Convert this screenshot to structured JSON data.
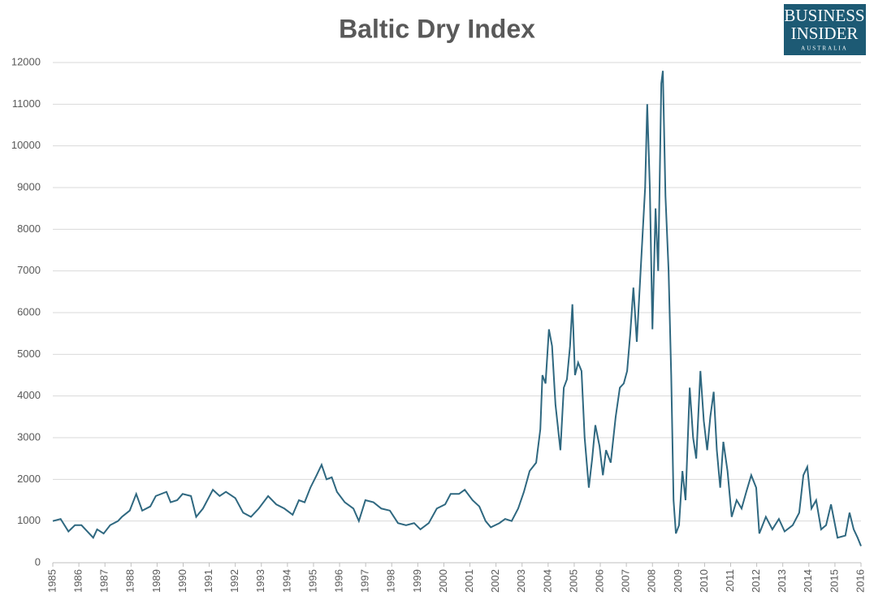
{
  "chart_data": {
    "type": "line",
    "title": "Baltic Dry Index",
    "x": [
      1985.0,
      1985.3,
      1985.6,
      1985.85,
      1986.1,
      1986.4,
      1986.55,
      1986.7,
      1986.95,
      1987.2,
      1987.5,
      1987.65,
      1987.95,
      1988.2,
      1988.43,
      1988.74,
      1988.95,
      1989.36,
      1989.52,
      1989.77,
      1989.98,
      1990.3,
      1990.5,
      1990.76,
      1991.14,
      1991.4,
      1991.64,
      1992.0,
      1992.3,
      1992.6,
      1992.9,
      1993.26,
      1993.57,
      1993.88,
      1994.2,
      1994.44,
      1994.66,
      1994.88,
      1995.12,
      1995.31,
      1995.5,
      1995.7,
      1995.9,
      1996.2,
      1996.53,
      1996.74,
      1996.99,
      1997.3,
      1997.6,
      1997.93,
      1998.24,
      1998.55,
      1998.86,
      1999.1,
      1999.42,
      1999.73,
      2000.05,
      2000.26,
      2000.58,
      2000.8,
      2001.1,
      2001.36,
      2001.6,
      2001.8,
      2002.13,
      2002.35,
      2002.6,
      2002.85,
      2003.07,
      2003.29,
      2003.54,
      2003.7,
      2003.78,
      2003.9,
      2004.03,
      2004.15,
      2004.28,
      2004.47,
      2004.6,
      2004.72,
      2004.84,
      2004.93,
      2005.03,
      2005.15,
      2005.28,
      2005.4,
      2005.56,
      2005.69,
      2005.81,
      2005.97,
      2006.1,
      2006.22,
      2006.4,
      2006.59,
      2006.75,
      2006.9,
      2007.03,
      2007.15,
      2007.27,
      2007.4,
      2007.59,
      2007.72,
      2007.8,
      2007.9,
      2008.0,
      2008.12,
      2008.22,
      2008.34,
      2008.4,
      2008.5,
      2008.62,
      2008.72,
      2008.81,
      2008.9,
      2009.02,
      2009.15,
      2009.27,
      2009.43,
      2009.56,
      2009.68,
      2009.84,
      2009.97,
      2010.1,
      2010.22,
      2010.35,
      2010.47,
      2010.6,
      2010.72,
      2010.88,
      2011.04,
      2011.23,
      2011.42,
      2011.6,
      2011.79,
      2011.98,
      2012.1,
      2012.35,
      2012.6,
      2012.85,
      2013.07,
      2013.38,
      2013.63,
      2013.79,
      2013.94,
      2014.1,
      2014.28,
      2014.47,
      2014.66,
      2014.85,
      2015.1,
      2015.4,
      2015.56,
      2015.72,
      2015.87,
      2016.0
    ],
    "series": [
      {
        "name": "Baltic Dry Index",
        "color": "#2f6880",
        "values": [
          1000,
          1050,
          750,
          900,
          900,
          700,
          600,
          800,
          700,
          900,
          1000,
          1100,
          1250,
          1650,
          1250,
          1350,
          1600,
          1700,
          1450,
          1500,
          1650,
          1600,
          1100,
          1300,
          1750,
          1600,
          1700,
          1550,
          1200,
          1100,
          1300,
          1600,
          1400,
          1300,
          1150,
          1500,
          1450,
          1800,
          2100,
          2350,
          2000,
          2050,
          1700,
          1450,
          1300,
          1000,
          1500,
          1450,
          1300,
          1250,
          950,
          900,
          950,
          800,
          950,
          1300,
          1400,
          1650,
          1650,
          1750,
          1500,
          1350,
          1000,
          850,
          950,
          1050,
          1000,
          1300,
          1700,
          2200,
          2400,
          3200,
          4500,
          4300,
          5600,
          5200,
          3800,
          2700,
          4200,
          4400,
          5200,
          6200,
          4500,
          4800,
          4600,
          3000,
          1800,
          2500,
          3300,
          2800,
          2100,
          2700,
          2400,
          3500,
          4200,
          4300,
          4600,
          5500,
          6600,
          5300,
          7500,
          9000,
          11000,
          9000,
          5600,
          8500,
          7000,
          11500,
          11800,
          8800,
          7000,
          4500,
          1500,
          700,
          900,
          2200,
          1500,
          4200,
          3000,
          2500,
          4600,
          3400,
          2700,
          3500,
          4100,
          2700,
          1800,
          2900,
          2200,
          1100,
          1500,
          1300,
          1700,
          2100,
          1800,
          700,
          1100,
          800,
          1050,
          750,
          900,
          1200,
          2100,
          2300,
          1300,
          1500,
          800,
          900,
          1400,
          600,
          650,
          1200,
          800,
          600,
          400
        ]
      }
    ],
    "xlim": [
      1985,
      2016
    ],
    "xticks": [
      1985,
      1986,
      1987,
      1988,
      1989,
      1990,
      1991,
      1992,
      1993,
      1994,
      1995,
      1996,
      1997,
      1998,
      1999,
      2000,
      2001,
      2002,
      2003,
      2004,
      2005,
      2006,
      2007,
      2008,
      2009,
      2010,
      2011,
      2012,
      2013,
      2014,
      2015,
      2016
    ],
    "ylim": [
      0,
      12000
    ],
    "yticks": [
      0,
      1000,
      2000,
      3000,
      4000,
      5000,
      6000,
      7000,
      8000,
      9000,
      10000,
      11000,
      12000
    ],
    "grid": true
  },
  "logo": {
    "line1": "BUSINESS",
    "line2": "INSIDER",
    "line3": "AUSTRALIA"
  }
}
